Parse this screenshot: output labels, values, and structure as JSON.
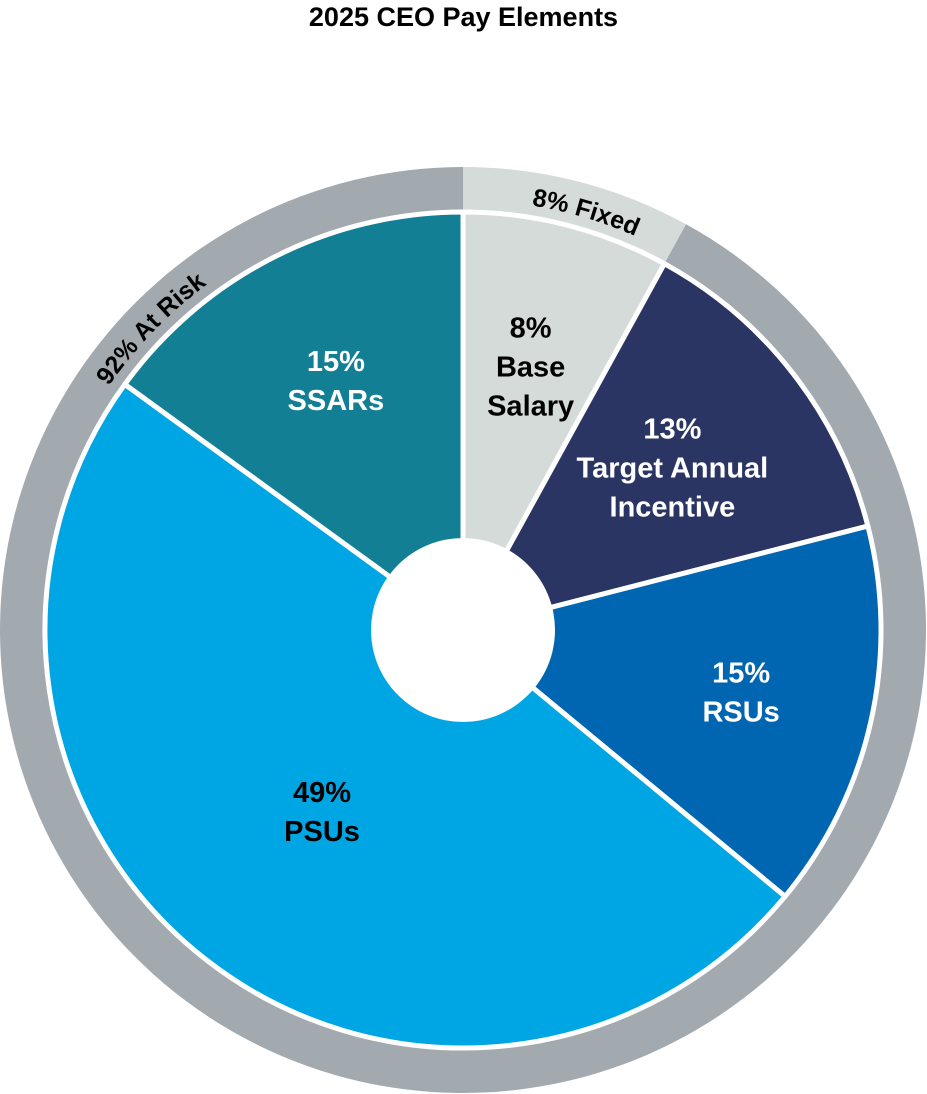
{
  "chart_data": {
    "type": "pie",
    "title": "2025 CEO Pay Elements",
    "slices": [
      {
        "pct_label": "8%",
        "label_lines": [
          "Base",
          "Salary"
        ],
        "value": 8,
        "color": "#d4dbd8",
        "text_color": "#000000",
        "name_key": "base-salary"
      },
      {
        "pct_label": "13%",
        "label_lines": [
          "Target Annual",
          "Incentive"
        ],
        "value": 13,
        "color": "#2b3564",
        "text_color": "#ffffff",
        "name_key": "target-annual-incentive"
      },
      {
        "pct_label": "15%",
        "label_lines": [
          "RSUs"
        ],
        "value": 15,
        "color": "#0066b1",
        "text_color": "#ffffff",
        "name_key": "rsus"
      },
      {
        "pct_label": "49%",
        "label_lines": [
          "PSUs"
        ],
        "value": 49,
        "color": "#00a6e4",
        "text_color": "#000000",
        "name_key": "psus"
      },
      {
        "pct_label": "15%",
        "label_lines": [
          "SSARs"
        ],
        "value": 15,
        "color": "#127f94",
        "text_color": "#ffffff",
        "name_key": "ssars"
      }
    ],
    "outer_ring": [
      {
        "label": "8% Fixed",
        "value": 8,
        "color": "#d4dbd8"
      },
      {
        "label": "92% At Risk",
        "value": 92,
        "color": "#a2aaaf"
      }
    ]
  }
}
